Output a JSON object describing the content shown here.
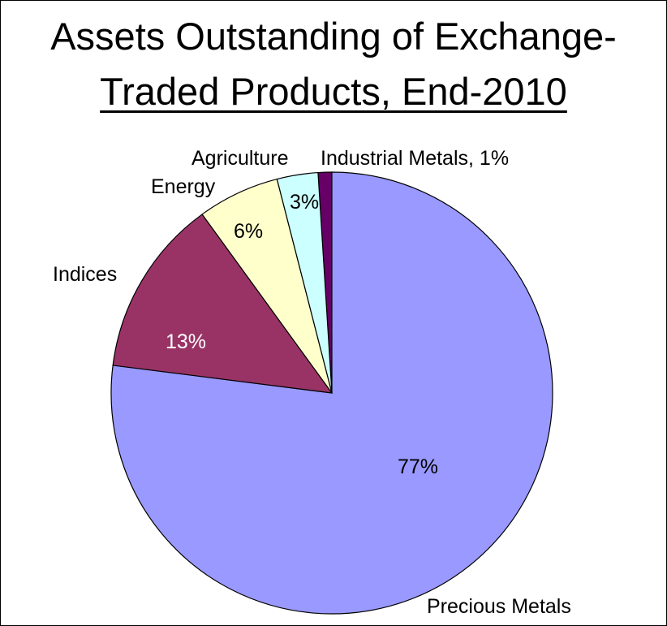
{
  "chart_data": {
    "type": "pie",
    "title_line1": "Assets Outstanding of Exchange-",
    "title_line2": "Traded Products, End-2010",
    "slices": [
      {
        "name": "Industrial Metals",
        "value": 1,
        "label": "1%",
        "color": "#660066"
      },
      {
        "name": "Precious Metals",
        "value": 77,
        "label": "77%",
        "color": "#9999ff"
      },
      {
        "name": "Indices",
        "value": 13,
        "label": "13%",
        "color": "#993366"
      },
      {
        "name": "Energy",
        "value": 6,
        "label": "6%",
        "color": "#ffffcc"
      },
      {
        "name": "Agriculture",
        "value": 3,
        "label": "3%",
        "color": "#ccffff"
      }
    ],
    "category_labels": {
      "industrial": "Industrial Metals, 1%",
      "precious": "Precious Metals",
      "indices": "Indices",
      "energy": "Energy",
      "agriculture": "Agriculture"
    }
  }
}
